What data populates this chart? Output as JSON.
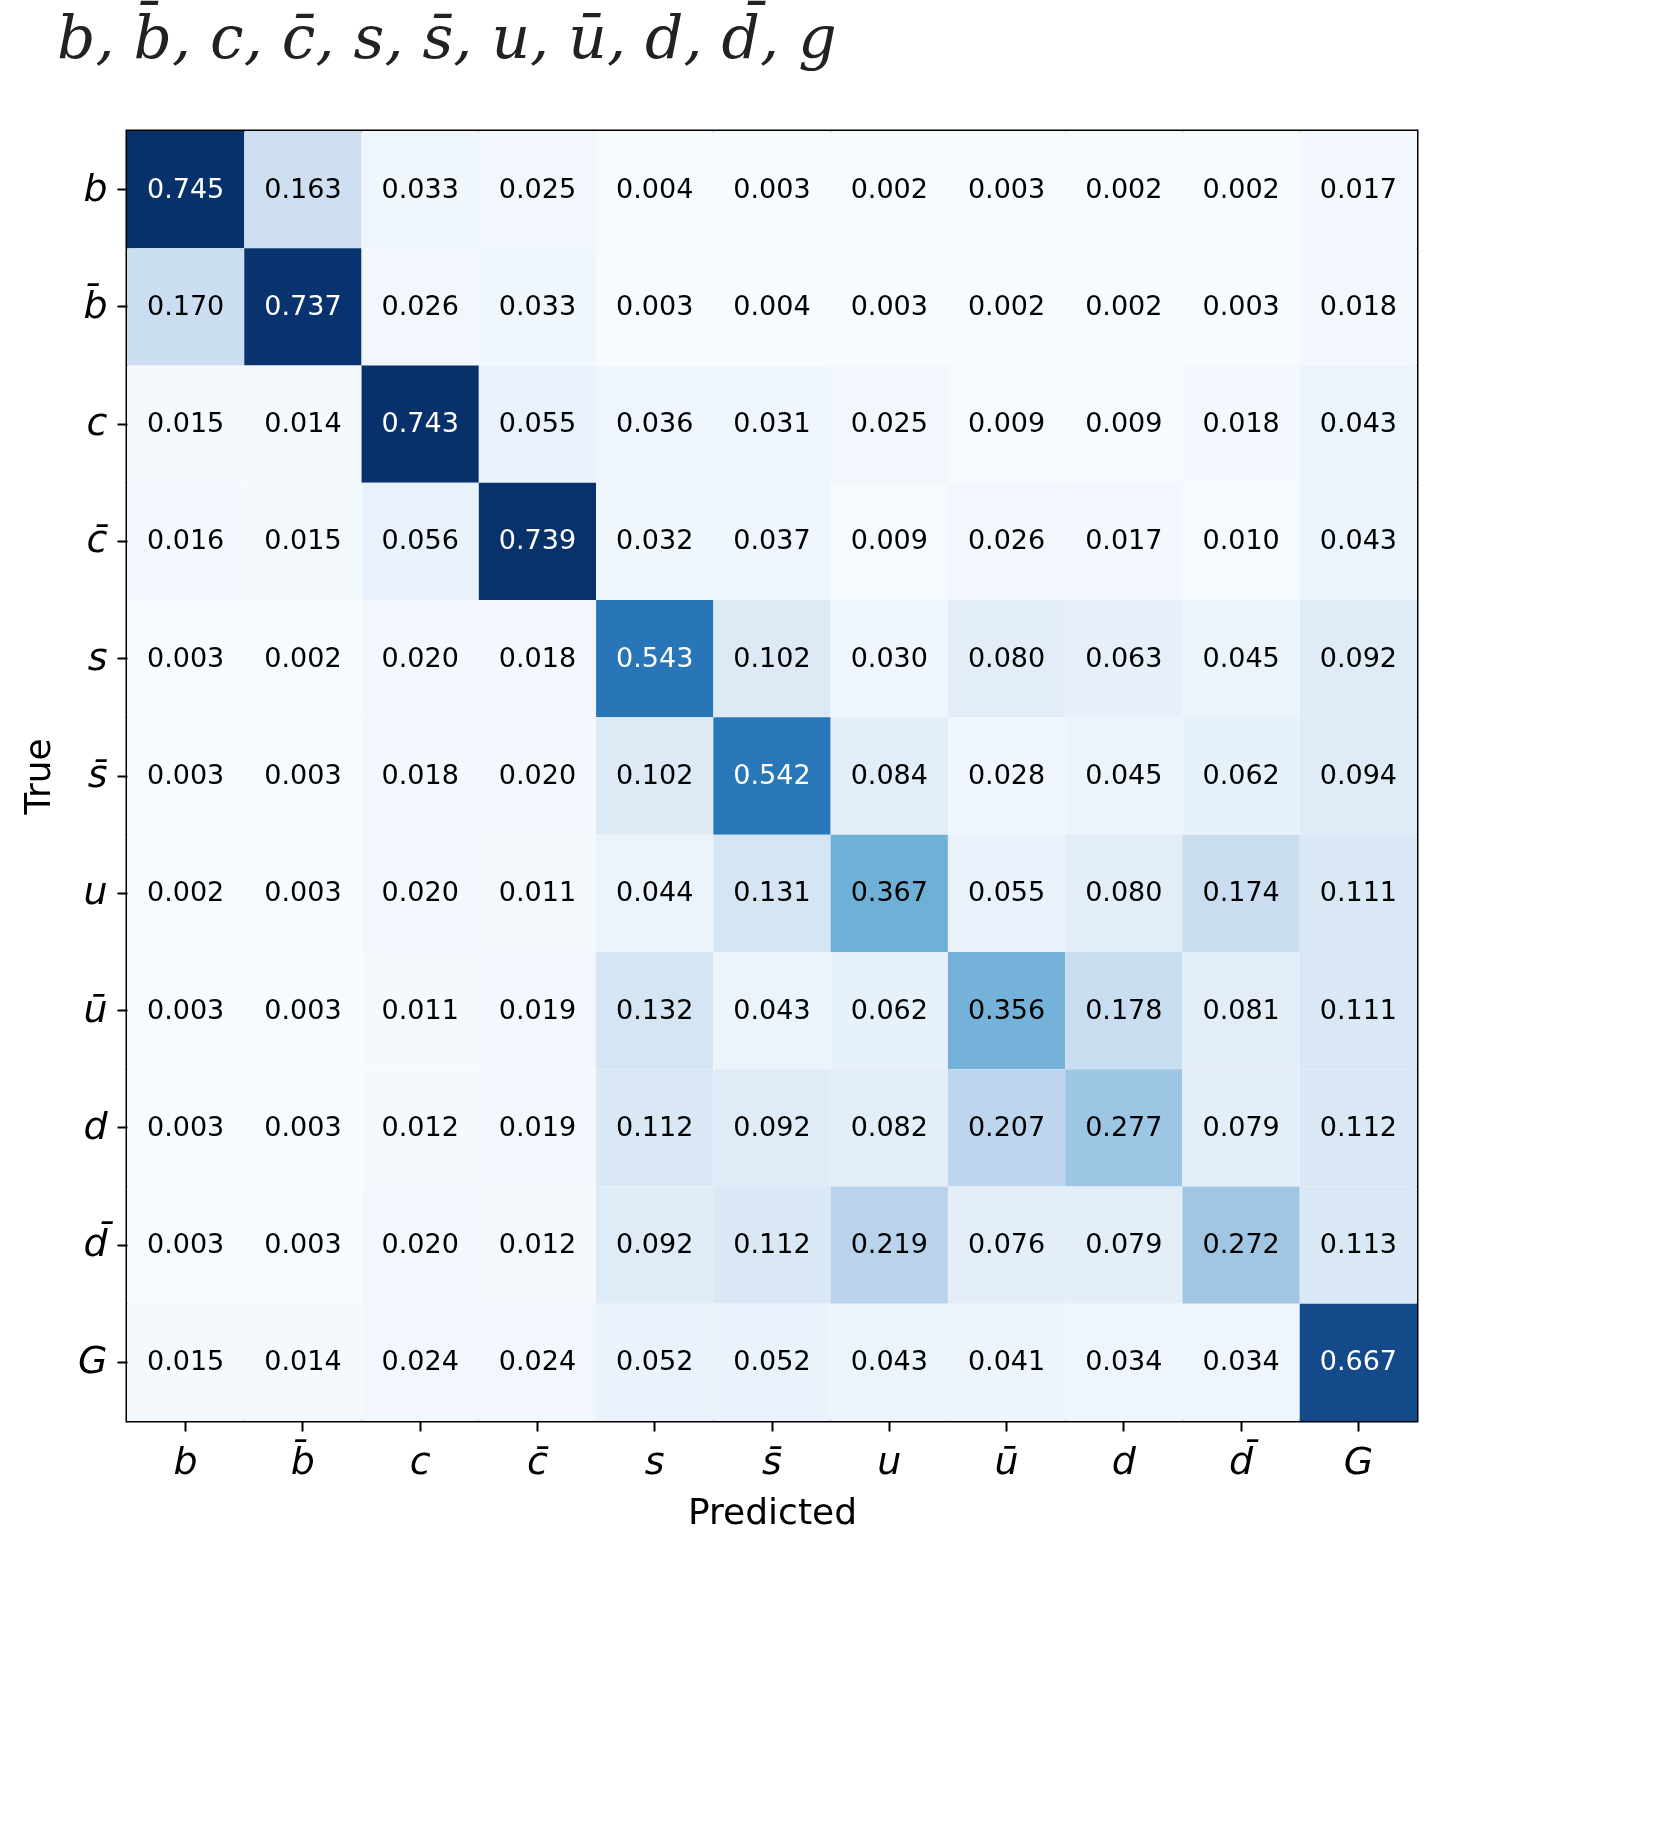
{
  "chart_data": {
    "type": "heatmap",
    "title": "b, b̄, c, c̄, s, s̄, u, ū, d, d̄, g",
    "xlabel": "Predicted",
    "ylabel": "True",
    "categories": [
      "b",
      "b̄",
      "c",
      "c̄",
      "s",
      "s̄",
      "u",
      "ū",
      "d",
      "d̄",
      "G"
    ],
    "y_categories": [
      "b",
      "b̄",
      "c",
      "c̄",
      "s",
      "s̄",
      "u",
      "ū",
      "d",
      "d̄",
      "G"
    ],
    "cells": [
      [
        0.745,
        0.163,
        0.033,
        0.025,
        0.004,
        0.003,
        0.002,
        0.003,
        0.002,
        0.002,
        0.017
      ],
      [
        0.17,
        0.737,
        0.026,
        0.033,
        0.003,
        0.004,
        0.003,
        0.002,
        0.002,
        0.003,
        0.018
      ],
      [
        0.015,
        0.014,
        0.743,
        0.055,
        0.036,
        0.031,
        0.025,
        0.009,
        0.009,
        0.018,
        0.043
      ],
      [
        0.016,
        0.015,
        0.056,
        0.739,
        0.032,
        0.037,
        0.009,
        0.026,
        0.017,
        0.01,
        0.043
      ],
      [
        0.003,
        0.002,
        0.02,
        0.018,
        0.543,
        0.102,
        0.03,
        0.08,
        0.063,
        0.045,
        0.092
      ],
      [
        0.003,
        0.003,
        0.018,
        0.02,
        0.102,
        0.542,
        0.084,
        0.028,
        0.045,
        0.062,
        0.094
      ],
      [
        0.002,
        0.003,
        0.02,
        0.011,
        0.044,
        0.131,
        0.367,
        0.055,
        0.08,
        0.174,
        0.111
      ],
      [
        0.003,
        0.003,
        0.011,
        0.019,
        0.132,
        0.043,
        0.062,
        0.356,
        0.178,
        0.081,
        0.111
      ],
      [
        0.003,
        0.003,
        0.012,
        0.019,
        0.112,
        0.092,
        0.082,
        0.207,
        0.277,
        0.079,
        0.112
      ],
      [
        0.003,
        0.003,
        0.02,
        0.012,
        0.092,
        0.112,
        0.219,
        0.076,
        0.079,
        0.272,
        0.113
      ],
      [
        0.015,
        0.014,
        0.024,
        0.024,
        0.052,
        0.052,
        0.043,
        0.041,
        0.034,
        0.034,
        0.667
      ]
    ],
    "cell_labels": [
      [
        "0.745",
        "0.163",
        "0.033",
        "0.025",
        "0.004",
        "0.003",
        "0.002",
        "0.003",
        "0.002",
        "0.002",
        "0.017"
      ],
      [
        "0.170",
        "0.737",
        "0.026",
        "0.033",
        "0.003",
        "0.004",
        "0.003",
        "0.002",
        "0.002",
        "0.003",
        "0.018"
      ],
      [
        "0.015",
        "0.014",
        "0.743",
        "0.055",
        "0.036",
        "0.031",
        "0.025",
        "0.009",
        "0.009",
        "0.018",
        "0.043"
      ],
      [
        "0.016",
        "0.015",
        "0.056",
        "0.739",
        "0.032",
        "0.037",
        "0.009",
        "0.026",
        "0.017",
        "0.010",
        "0.043"
      ],
      [
        "0.003",
        "0.002",
        "0.020",
        "0.018",
        "0.543",
        "0.102",
        "0.030",
        "0.080",
        "0.063",
        "0.045",
        "0.092"
      ],
      [
        "0.003",
        "0.003",
        "0.018",
        "0.020",
        "0.102",
        "0.542",
        "0.084",
        "0.028",
        "0.045",
        "0.062",
        "0.094"
      ],
      [
        "0.002",
        "0.003",
        "0.020",
        "0.011",
        "0.044",
        "0.131",
        "0.367",
        "0.055",
        "0.080",
        "0.174",
        "0.111"
      ],
      [
        "0.003",
        "0.003",
        "0.011",
        "0.019",
        "0.132",
        "0.043",
        "0.062",
        "0.356",
        "0.178",
        "0.081",
        "0.111"
      ],
      [
        "0.003",
        "0.003",
        "0.012",
        "0.019",
        "0.112",
        "0.092",
        "0.082",
        "0.207",
        "0.277",
        "0.079",
        "0.112"
      ],
      [
        "0.003",
        "0.003",
        "0.020",
        "0.012",
        "0.092",
        "0.112",
        "0.219",
        "0.076",
        "0.079",
        "0.272",
        "0.113"
      ],
      [
        "0.015",
        "0.014",
        "0.024",
        "0.024",
        "0.052",
        "0.052",
        "0.043",
        "0.041",
        "0.034",
        "0.034",
        "0.667"
      ]
    ],
    "data_labels": true
  }
}
